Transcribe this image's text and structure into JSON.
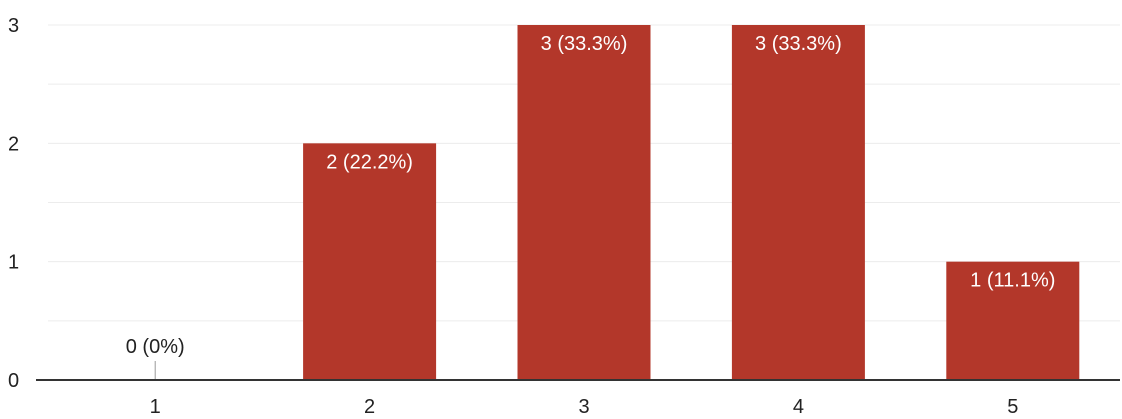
{
  "chart_data": {
    "type": "bar",
    "categories": [
      "1",
      "2",
      "3",
      "4",
      "5"
    ],
    "values": [
      0,
      2,
      3,
      3,
      1
    ],
    "data_labels": [
      "0 (0%)",
      "2 (22.2%)",
      "3 (33.3%)",
      "3 (33.3%)",
      "1 (11.1%)"
    ],
    "y_ticks": [
      "0",
      "1",
      "2",
      "3"
    ],
    "ylim": [
      0,
      3
    ],
    "y_minor_step": 0.5,
    "grid": true,
    "title": "",
    "xlabel": "",
    "ylabel": "",
    "colors": {
      "bar": "#b3372a",
      "label_inside": "#ffffff",
      "label_outside": "#222222",
      "grid": "#ececec",
      "axis": "#333333",
      "zero_marker": "#999999"
    }
  }
}
